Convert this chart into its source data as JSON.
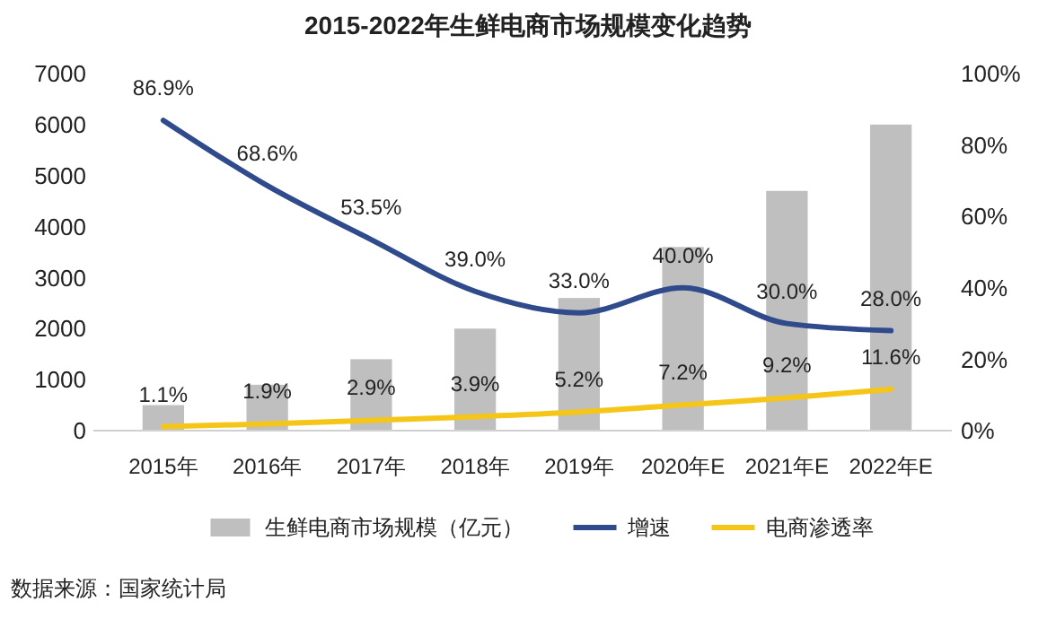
{
  "chart_data": {
    "type": "bar",
    "title": "2015-2022年生鲜电商市场规模变化趋势",
    "categories": [
      "2015年",
      "2016年",
      "2017年",
      "2018年",
      "2019年",
      "2020年E",
      "2021年E",
      "2022年E"
    ],
    "series": [
      {
        "name": "生鲜电商市场规模（亿元）",
        "color": "#bfbfbf",
        "values": [
          500,
          900,
          1400,
          2000,
          2600,
          3600,
          4700,
          6000
        ]
      },
      {
        "name": "增速",
        "type": "line",
        "axis": "y2",
        "color": "#2f4b8c",
        "values": [
          86.9,
          68.6,
          53.5,
          39.0,
          33.0,
          40.0,
          30.0,
          28.0
        ],
        "value_labels": [
          "86.9%",
          "68.6%",
          "53.5%",
          "39.0%",
          "33.0%",
          "40.0%",
          "30.0%",
          "28.0%"
        ]
      },
      {
        "name": "电商渗透率",
        "type": "line",
        "axis": "y2",
        "color": "#f5c518",
        "values": [
          1.1,
          1.9,
          2.9,
          3.9,
          5.2,
          7.2,
          9.2,
          11.6
        ],
        "value_labels": [
          "1.1%",
          "1.9%",
          "2.9%",
          "3.9%",
          "5.2%",
          "7.2%",
          "9.2%",
          "11.6%"
        ]
      }
    ],
    "ylim": [
      0,
      7000
    ],
    "yticks": [
      0,
      1000,
      2000,
      3000,
      4000,
      5000,
      6000,
      7000
    ],
    "y2lim": [
      0,
      100
    ],
    "y2ticks": [
      {
        "value": 0,
        "label": "0%"
      },
      {
        "value": 20,
        "label": "20%"
      },
      {
        "value": 40,
        "label": "40%"
      },
      {
        "value": 60,
        "label": "60%"
      },
      {
        "value": 80,
        "label": "80%"
      },
      {
        "value": 100,
        "label": "100%"
      }
    ],
    "legend": "bottom",
    "grid": false,
    "annotations": [
      "数据来源：国家统计局"
    ]
  }
}
